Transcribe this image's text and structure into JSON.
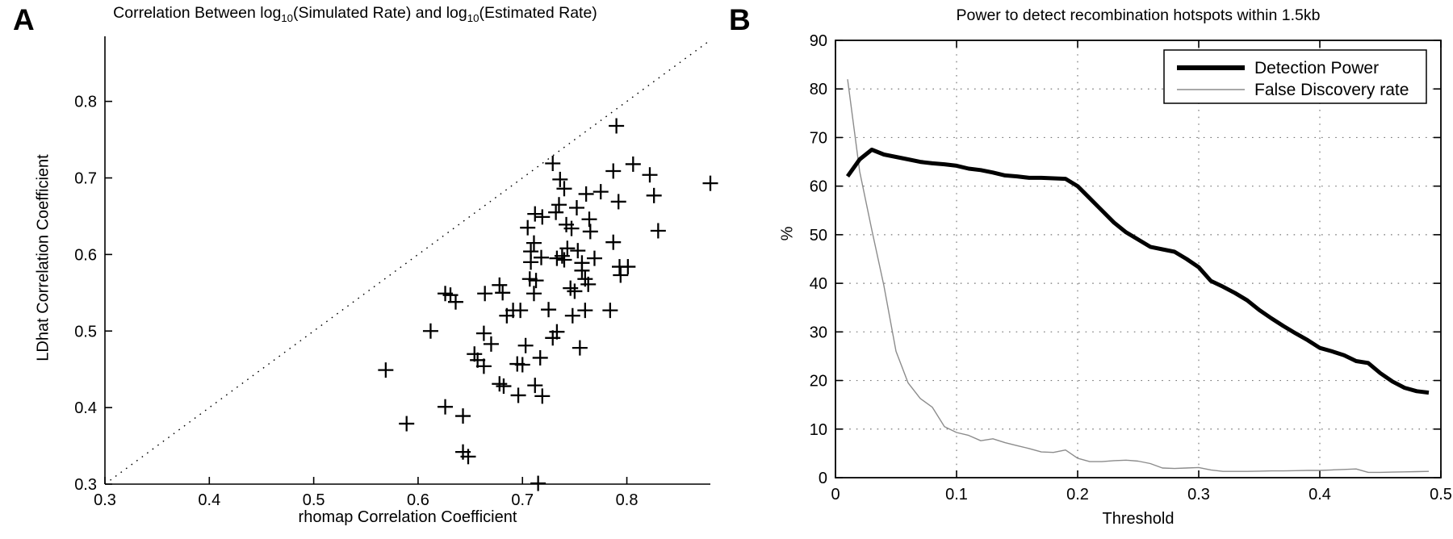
{
  "figure": {
    "background": "#ffffff"
  },
  "panelA": {
    "label": "A",
    "title_parts": {
      "p1": "Correlation Between log",
      "s1": "10",
      "p2": "(Simulated Rate) and log",
      "s2": "10",
      "p3": "(Estimated Rate)"
    },
    "xlabel": "rhomap Correlation Coefficient",
    "ylabel": "LDhat Correlation Coefficient",
    "xtick_labels": [
      "0.3",
      "0.4",
      "0.5",
      "0.6",
      "0.7",
      "0.8"
    ],
    "ytick_labels": [
      "0.3",
      "0.4",
      "0.5",
      "0.6",
      "0.7",
      "0.8"
    ]
  },
  "panelB": {
    "label": "B",
    "title": "Power to detect recombination hotspots within 1.5kb",
    "xlabel": "Threshold",
    "ylabel": "%",
    "xtick_labels": [
      "0",
      "0.1",
      "0.2",
      "0.3",
      "0.4",
      "0.5"
    ],
    "ytick_labels": [
      "0",
      "10",
      "20",
      "30",
      "40",
      "50",
      "60",
      "70",
      "80",
      "90"
    ],
    "legend": [
      "Detection Power",
      "False Discovery rate"
    ]
  },
  "colors": {
    "foreground": "#000000",
    "gray_line": "#8c8c8c",
    "grid": "#777777",
    "background": "#ffffff"
  },
  "chart_data": [
    {
      "type": "scatter",
      "panel": "A",
      "title": "Correlation Between log10(Simulated Rate) and log10(Estimated Rate)",
      "xlabel": "rhomap Correlation Coefficient",
      "ylabel": "LDhat Correlation Coefficient",
      "xlim": [
        0.3,
        0.88
      ],
      "ylim": [
        0.3,
        0.885
      ],
      "xticks": [
        0.3,
        0.4,
        0.5,
        0.6,
        0.7,
        0.8
      ],
      "yticks": [
        0.3,
        0.4,
        0.5,
        0.6,
        0.7,
        0.8
      ],
      "grid": false,
      "marker": "plus",
      "reference_line": {
        "type": "identity y=x",
        "style": "dotted",
        "from": [
          0.3,
          0.3
        ],
        "to": [
          0.88,
          0.88
        ]
      },
      "points": [
        [
          0.79,
          0.768
        ],
        [
          0.729,
          0.719
        ],
        [
          0.806,
          0.718
        ],
        [
          0.736,
          0.698
        ],
        [
          0.787,
          0.709
        ],
        [
          0.822,
          0.704
        ],
        [
          0.74,
          0.686
        ],
        [
          0.761,
          0.679
        ],
        [
          0.775,
          0.682
        ],
        [
          0.792,
          0.669
        ],
        [
          0.826,
          0.677
        ],
        [
          0.88,
          0.693
        ],
        [
          0.735,
          0.665
        ],
        [
          0.752,
          0.661
        ],
        [
          0.712,
          0.653
        ],
        [
          0.719,
          0.649
        ],
        [
          0.732,
          0.655
        ],
        [
          0.742,
          0.639
        ],
        [
          0.747,
          0.634
        ],
        [
          0.764,
          0.646
        ],
        [
          0.765,
          0.63
        ],
        [
          0.705,
          0.635
        ],
        [
          0.711,
          0.615
        ],
        [
          0.787,
          0.616
        ],
        [
          0.83,
          0.631
        ],
        [
          0.743,
          0.608
        ],
        [
          0.753,
          0.605
        ],
        [
          0.708,
          0.604
        ],
        [
          0.718,
          0.596
        ],
        [
          0.708,
          0.59
        ],
        [
          0.733,
          0.595
        ],
        [
          0.738,
          0.598
        ],
        [
          0.74,
          0.593
        ],
        [
          0.769,
          0.595
        ],
        [
          0.757,
          0.589
        ],
        [
          0.757,
          0.579
        ],
        [
          0.76,
          0.568
        ],
        [
          0.763,
          0.561
        ],
        [
          0.793,
          0.584
        ],
        [
          0.801,
          0.584
        ],
        [
          0.794,
          0.573
        ],
        [
          0.707,
          0.568
        ],
        [
          0.713,
          0.566
        ],
        [
          0.711,
          0.549
        ],
        [
          0.746,
          0.556
        ],
        [
          0.75,
          0.552
        ],
        [
          0.678,
          0.56
        ],
        [
          0.681,
          0.55
        ],
        [
          0.698,
          0.527
        ],
        [
          0.691,
          0.527
        ],
        [
          0.748,
          0.52
        ],
        [
          0.76,
          0.527
        ],
        [
          0.784,
          0.527
        ],
        [
          0.725,
          0.528
        ],
        [
          0.626,
          0.549
        ],
        [
          0.631,
          0.547
        ],
        [
          0.636,
          0.538
        ],
        [
          0.664,
          0.549
        ],
        [
          0.685,
          0.52
        ],
        [
          0.612,
          0.5
        ],
        [
          0.663,
          0.497
        ],
        [
          0.67,
          0.483
        ],
        [
          0.654,
          0.47
        ],
        [
          0.657,
          0.462
        ],
        [
          0.663,
          0.454
        ],
        [
          0.569,
          0.449
        ],
        [
          0.678,
          0.431
        ],
        [
          0.682,
          0.428
        ],
        [
          0.626,
          0.401
        ],
        [
          0.643,
          0.389
        ],
        [
          0.589,
          0.379
        ],
        [
          0.643,
          0.342
        ],
        [
          0.648,
          0.336
        ],
        [
          0.733,
          0.499
        ],
        [
          0.729,
          0.491
        ],
        [
          0.703,
          0.481
        ],
        [
          0.755,
          0.478
        ],
        [
          0.717,
          0.465
        ],
        [
          0.695,
          0.457
        ],
        [
          0.7,
          0.456
        ],
        [
          0.712,
          0.429
        ],
        [
          0.696,
          0.416
        ],
        [
          0.719,
          0.415
        ],
        [
          0.715,
          0.301
        ]
      ]
    },
    {
      "type": "line",
      "panel": "B",
      "title": "Power to detect recombination hotspots within 1.5kb",
      "xlabel": "Threshold",
      "ylabel": "%",
      "xlim": [
        0,
        0.5
      ],
      "ylim": [
        0,
        90
      ],
      "xticks": [
        0,
        0.1,
        0.2,
        0.3,
        0.4,
        0.5
      ],
      "yticks": [
        0,
        10,
        20,
        30,
        40,
        50,
        60,
        70,
        80,
        90
      ],
      "grid": "dotted",
      "legend_position": "top-right",
      "x": [
        0.01,
        0.02,
        0.03,
        0.04,
        0.05,
        0.06,
        0.07,
        0.08,
        0.09,
        0.1,
        0.11,
        0.12,
        0.13,
        0.14,
        0.15,
        0.16,
        0.17,
        0.18,
        0.19,
        0.2,
        0.21,
        0.22,
        0.23,
        0.24,
        0.25,
        0.26,
        0.27,
        0.28,
        0.29,
        0.3,
        0.31,
        0.32,
        0.33,
        0.34,
        0.35,
        0.36,
        0.37,
        0.38,
        0.39,
        0.4,
        0.41,
        0.42,
        0.43,
        0.44,
        0.45,
        0.46,
        0.47,
        0.48,
        0.49
      ],
      "series": [
        {
          "name": "Detection Power",
          "color": "#000000",
          "width": 5,
          "values": [
            62,
            65.5,
            67.5,
            66.5,
            66,
            65.5,
            65,
            64.7,
            64.5,
            64.2,
            63.6,
            63.3,
            62.8,
            62.2,
            62,
            61.7,
            61.7,
            61.6,
            61.5,
            60,
            57.5,
            55,
            52.5,
            50.5,
            49,
            47.5,
            47,
            46.5,
            45,
            43.3,
            40.5,
            39.3,
            38,
            36.5,
            34.5,
            32.8,
            31.2,
            29.7,
            28.3,
            26.7,
            26,
            25.2,
            24,
            23.6,
            21.5,
            19.8,
            18.5,
            17.8,
            17.5
          ]
        },
        {
          "name": "False Discovery rate",
          "color": "#8c8c8c",
          "width": 1.4,
          "values": [
            82,
            63,
            51,
            39.5,
            26,
            19.5,
            16.3,
            14.5,
            10.5,
            9.3,
            8.7,
            7.6,
            8,
            7.2,
            6.6,
            6,
            5.3,
            5.2,
            5.7,
            4,
            3.3,
            3.3,
            3.5,
            3.6,
            3.4,
            2.9,
            2,
            1.9,
            2,
            2.1,
            1.6,
            1.3,
            1.3,
            1.3,
            1.35,
            1.4,
            1.4,
            1.45,
            1.5,
            1.5,
            1.6,
            1.7,
            1.8,
            1.1,
            1.1,
            1.15,
            1.2,
            1.25,
            1.3
          ]
        }
      ]
    }
  ]
}
